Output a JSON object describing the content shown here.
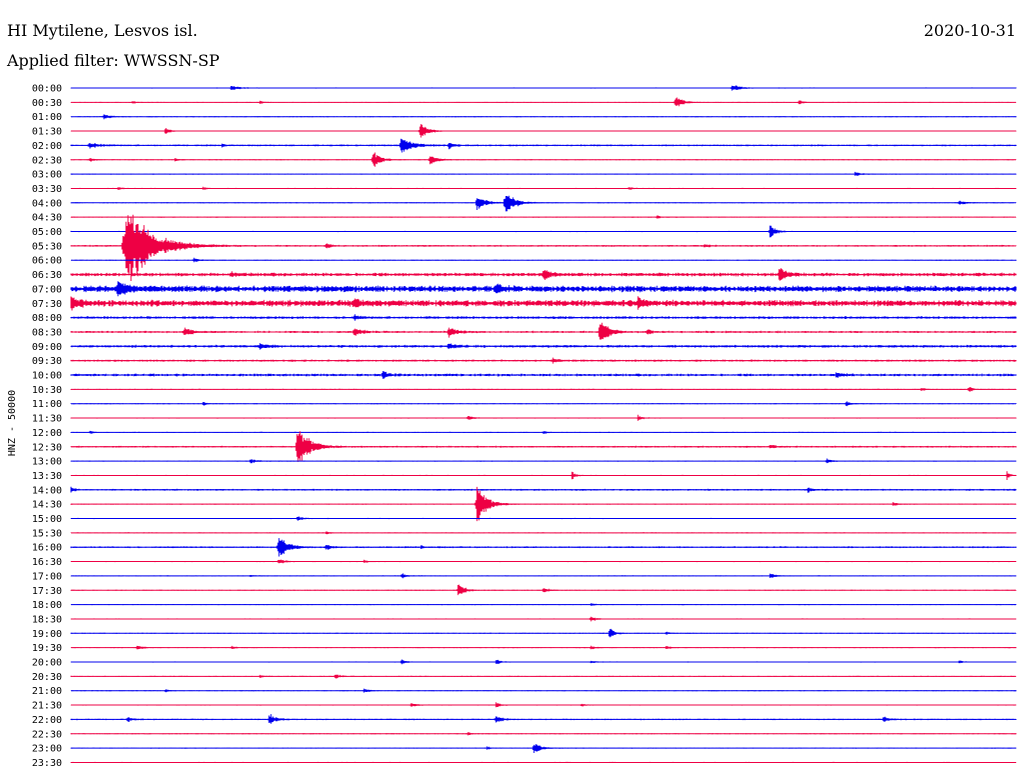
{
  "header": {
    "station": "HI Mytilene, Lesvos isl.",
    "date": "2020-10-31",
    "filter": "Applied filter: WWSSN-SP"
  },
  "chart_data": {
    "type": "line",
    "subtype": "helicorder",
    "channel_label": "HNZ - 50000",
    "row_interval_minutes": 30,
    "colors": {
      "even": "#0000ee",
      "odd": "#ee0044"
    },
    "rows": [
      {
        "label": "00:00",
        "noise": 0.6,
        "events": [
          [
            0.17,
            3,
            3.0
          ],
          [
            0.7,
            4,
            3.0
          ]
        ]
      },
      {
        "label": "00:30",
        "noise": 0.5,
        "events": [
          [
            0.065,
            2,
            1.5
          ],
          [
            0.2,
            2,
            1.5
          ],
          [
            0.64,
            6,
            3.5
          ],
          [
            0.77,
            3,
            1.5
          ]
        ]
      },
      {
        "label": "01:00",
        "noise": 0.6,
        "events": [
          [
            0.035,
            3,
            2.5
          ]
        ]
      },
      {
        "label": "01:30",
        "noise": 0.5,
        "events": [
          [
            0.1,
            3,
            2.5
          ],
          [
            0.37,
            8,
            3.5
          ]
        ]
      },
      {
        "label": "02:00",
        "noise": 1.0,
        "events": [
          [
            0.02,
            3,
            4.0
          ],
          [
            0.16,
            2,
            1.5
          ],
          [
            0.35,
            9,
            4.5
          ],
          [
            0.4,
            4,
            2.0
          ]
        ]
      },
      {
        "label": "02:30",
        "noise": 0.6,
        "events": [
          [
            0.02,
            2,
            2.0
          ],
          [
            0.11,
            2,
            1.5
          ],
          [
            0.32,
            10,
            3.0
          ],
          [
            0.38,
            6,
            3.0
          ]
        ]
      },
      {
        "label": "03:00",
        "noise": 0.6,
        "events": [
          [
            0.83,
            3,
            2.0
          ]
        ]
      },
      {
        "label": "03:30",
        "noise": 0.6,
        "events": [
          [
            0.05,
            2,
            1.5
          ],
          [
            0.14,
            2,
            1.5
          ],
          [
            0.59,
            2,
            1.5
          ]
        ]
      },
      {
        "label": "04:00",
        "noise": 0.6,
        "events": [
          [
            0.43,
            8,
            3.5
          ],
          [
            0.46,
            14,
            4.0
          ],
          [
            0.94,
            3,
            2.5
          ]
        ]
      },
      {
        "label": "04:30",
        "noise": 0.6,
        "events": [
          [
            0.62,
            2,
            1.5
          ]
        ]
      },
      {
        "label": "05:00",
        "noise": 0.6,
        "events": [
          [
            0.74,
            7,
            2.5
          ]
        ]
      },
      {
        "label": "05:30",
        "noise": 1.0,
        "events": [
          [
            0.06,
            45,
            10.0
          ],
          [
            0.27,
            3,
            2.0
          ],
          [
            0.67,
            2,
            1.5
          ]
        ]
      },
      {
        "label": "06:00",
        "noise": 0.6,
        "events": [
          [
            0.13,
            3,
            2.0
          ]
        ]
      },
      {
        "label": "06:30",
        "noise": 2.0,
        "events": [
          [
            0.17,
            3,
            2.0
          ],
          [
            0.5,
            6,
            3.0
          ],
          [
            0.75,
            8,
            3.0
          ]
        ]
      },
      {
        "label": "07:00",
        "noise": 3.5,
        "events": [
          [
            0.05,
            8,
            4.0
          ],
          [
            0.45,
            4,
            3.0
          ]
        ]
      },
      {
        "label": "07:30",
        "noise": 3.5,
        "events": [
          [
            0.0,
            6,
            4.0
          ],
          [
            0.3,
            4,
            3.0
          ],
          [
            0.6,
            4,
            3.0
          ]
        ]
      },
      {
        "label": "08:00",
        "noise": 1.5,
        "events": [
          [
            0.3,
            3,
            2.0
          ]
        ]
      },
      {
        "label": "08:30",
        "noise": 1.2,
        "events": [
          [
            0.12,
            5,
            3.0
          ],
          [
            0.3,
            5,
            3.0
          ],
          [
            0.4,
            6,
            3.0
          ],
          [
            0.56,
            14,
            3.5
          ],
          [
            0.61,
            3,
            2.0
          ]
        ]
      },
      {
        "label": "09:00",
        "noise": 1.5,
        "events": [
          [
            0.2,
            3,
            3.0
          ],
          [
            0.4,
            3,
            3.0
          ]
        ]
      },
      {
        "label": "09:30",
        "noise": 1.2,
        "events": [
          [
            0.51,
            3,
            2.0
          ]
        ]
      },
      {
        "label": "10:00",
        "noise": 1.5,
        "events": [
          [
            0.33,
            5,
            2.0
          ],
          [
            0.81,
            3,
            2.0
          ]
        ]
      },
      {
        "label": "10:30",
        "noise": 0.6,
        "events": [
          [
            0.9,
            2,
            1.5
          ],
          [
            0.95,
            4,
            1.5
          ]
        ]
      },
      {
        "label": "11:00",
        "noise": 0.6,
        "events": [
          [
            0.14,
            2,
            1.5
          ],
          [
            0.82,
            3,
            2.0
          ]
        ]
      },
      {
        "label": "11:30",
        "noise": 0.6,
        "events": [
          [
            0.42,
            3,
            2.0
          ],
          [
            0.6,
            3,
            2.0
          ]
        ]
      },
      {
        "label": "12:00",
        "noise": 0.6,
        "events": [
          [
            0.02,
            2,
            1.5
          ],
          [
            0.5,
            2,
            1.5
          ]
        ]
      },
      {
        "label": "12:30",
        "noise": 1.0,
        "events": [
          [
            0.24,
            26,
            4.5
          ],
          [
            0.74,
            3,
            2.0
          ]
        ]
      },
      {
        "label": "13:00",
        "noise": 0.6,
        "events": [
          [
            0.19,
            3,
            2.0
          ],
          [
            0.8,
            3,
            2.0
          ]
        ]
      },
      {
        "label": "13:30",
        "noise": 0.6,
        "events": [
          [
            0.53,
            5,
            1.5
          ],
          [
            0.99,
            8,
            1.0
          ]
        ]
      },
      {
        "label": "14:00",
        "noise": 1.0,
        "events": [
          [
            0.0,
            4,
            1.5
          ],
          [
            0.78,
            3,
            1.5
          ]
        ]
      },
      {
        "label": "14:30",
        "noise": 0.6,
        "events": [
          [
            0.43,
            22,
            4.0
          ],
          [
            0.87,
            2,
            2.0
          ]
        ]
      },
      {
        "label": "15:00",
        "noise": 0.6,
        "events": [
          [
            0.24,
            3,
            2.0
          ]
        ]
      },
      {
        "label": "15:30",
        "noise": 0.6,
        "events": [
          [
            0.27,
            2,
            1.5
          ]
        ]
      },
      {
        "label": "16:00",
        "noise": 1.0,
        "events": [
          [
            0.22,
            14,
            3.5
          ],
          [
            0.27,
            3,
            2.0
          ],
          [
            0.37,
            4,
            1.0
          ]
        ]
      },
      {
        "label": "16:30",
        "noise": 0.6,
        "events": [
          [
            0.22,
            4,
            2.0
          ],
          [
            0.31,
            2,
            1.5
          ]
        ]
      },
      {
        "label": "17:00",
        "noise": 0.6,
        "events": [
          [
            0.19,
            2,
            1.5
          ],
          [
            0.35,
            3,
            2.0
          ],
          [
            0.74,
            3,
            2.0
          ]
        ]
      },
      {
        "label": "17:30",
        "noise": 0.6,
        "events": [
          [
            0.41,
            8,
            2.5
          ],
          [
            0.5,
            3,
            2.0
          ]
        ]
      },
      {
        "label": "18:00",
        "noise": 0.6,
        "events": [
          [
            0.55,
            2,
            1.5
          ]
        ]
      },
      {
        "label": "18:30",
        "noise": 0.6,
        "events": [
          [
            0.55,
            3,
            2.0
          ]
        ]
      },
      {
        "label": "19:00",
        "noise": 0.6,
        "events": [
          [
            0.57,
            7,
            2.0
          ],
          [
            0.63,
            2,
            1.5
          ]
        ]
      },
      {
        "label": "19:30",
        "noise": 0.6,
        "events": [
          [
            0.07,
            3,
            2.0
          ],
          [
            0.17,
            2,
            1.5
          ],
          [
            0.55,
            2,
            2.0
          ],
          [
            0.63,
            2,
            2.0
          ]
        ]
      },
      {
        "label": "20:00",
        "noise": 0.6,
        "events": [
          [
            0.35,
            3,
            2.0
          ],
          [
            0.45,
            3,
            2.0
          ],
          [
            0.55,
            2,
            1.5
          ],
          [
            0.94,
            2,
            1.5
          ]
        ]
      },
      {
        "label": "20:30",
        "noise": 0.6,
        "events": [
          [
            0.2,
            2,
            1.5
          ],
          [
            0.28,
            3,
            2.0
          ]
        ]
      },
      {
        "label": "21:00",
        "noise": 0.6,
        "events": [
          [
            0.1,
            2,
            1.5
          ],
          [
            0.31,
            3,
            2.0
          ]
        ]
      },
      {
        "label": "21:30",
        "noise": 0.6,
        "events": [
          [
            0.36,
            3,
            2.0
          ],
          [
            0.45,
            3,
            2.0
          ],
          [
            0.54,
            2,
            1.5
          ]
        ]
      },
      {
        "label": "22:00",
        "noise": 0.8,
        "events": [
          [
            0.06,
            3,
            2.0
          ],
          [
            0.21,
            7,
            2.5
          ],
          [
            0.45,
            4,
            2.5
          ],
          [
            0.86,
            4,
            2.0
          ]
        ]
      },
      {
        "label": "22:30",
        "noise": 0.6,
        "events": [
          [
            0.42,
            2,
            1.5
          ]
        ]
      },
      {
        "label": "23:00",
        "noise": 0.6,
        "events": [
          [
            0.44,
            2,
            1.5
          ],
          [
            0.49,
            6,
            3.0
          ]
        ]
      },
      {
        "label": "23:30",
        "noise": 0.6,
        "events": []
      }
    ]
  }
}
